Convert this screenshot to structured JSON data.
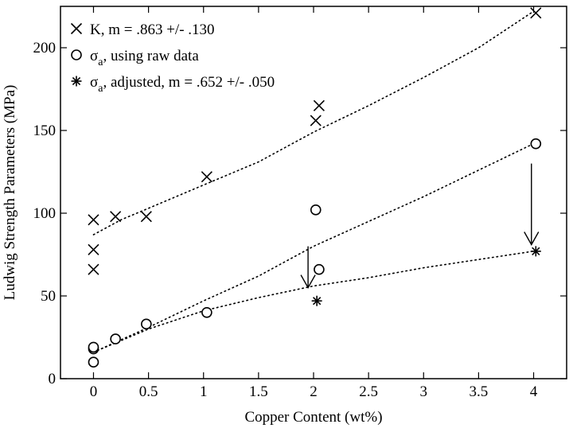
{
  "chart_data": {
    "type": "scatter",
    "title": "",
    "xlabel": "Copper Content (wt%)",
    "ylabel": "Ludwig Strength Parameters (MPa)",
    "xlim": [
      -0.3,
      4.3
    ],
    "ylim": [
      0,
      225
    ],
    "x_ticks": [
      {
        "value": 0,
        "label": "0"
      },
      {
        "value": 0.5,
        "label": "0.5"
      },
      {
        "value": 1,
        "label": "1"
      },
      {
        "value": 1.5,
        "label": "1.5"
      },
      {
        "value": 2,
        "label": "2"
      },
      {
        "value": 2.5,
        "label": "2.5"
      },
      {
        "value": 3,
        "label": "3"
      },
      {
        "value": 3.5,
        "label": "3.5"
      },
      {
        "value": 4,
        "label": "4"
      }
    ],
    "y_ticks": [
      {
        "value": 0,
        "label": "0"
      },
      {
        "value": 50,
        "label": "50"
      },
      {
        "value": 100,
        "label": "100"
      },
      {
        "value": 150,
        "label": "150"
      },
      {
        "value": 200,
        "label": "200"
      }
    ],
    "grid": false,
    "legend_position": "top-left",
    "series": [
      {
        "name": "K, m = .863 +/- .130",
        "label_parts": [
          "K, m = .863 +/- .130"
        ],
        "marker": "x",
        "points": [
          [
            0,
            66
          ],
          [
            0,
            78
          ],
          [
            0,
            96
          ],
          [
            0.2,
            98
          ],
          [
            0.48,
            98
          ],
          [
            1.03,
            122
          ],
          [
            2.02,
            156
          ],
          [
            2.05,
            165
          ],
          [
            4.02,
            221
          ]
        ],
        "trend": [
          [
            0,
            87
          ],
          [
            0.25,
            96
          ],
          [
            0.5,
            103
          ],
          [
            1,
            117
          ],
          [
            1.5,
            131
          ],
          [
            2,
            149
          ],
          [
            2.5,
            165
          ],
          [
            3,
            182
          ],
          [
            3.5,
            200
          ],
          [
            4,
            222
          ]
        ]
      },
      {
        "name": "σa, using raw data",
        "label_parts": [
          "σ",
          "a",
          ", using raw data"
        ],
        "marker": "circle",
        "points": [
          [
            0,
            10
          ],
          [
            0,
            18
          ],
          [
            0,
            19
          ],
          [
            0.2,
            24
          ],
          [
            0.48,
            33
          ],
          [
            1.03,
            40
          ],
          [
            2.02,
            102
          ],
          [
            2.05,
            66
          ],
          [
            4.02,
            142
          ]
        ],
        "trend": [
          [
            0,
            16
          ],
          [
            0.5,
            31
          ],
          [
            1,
            47
          ],
          [
            1.5,
            62
          ],
          [
            2,
            80
          ],
          [
            2.5,
            95
          ],
          [
            3,
            110
          ],
          [
            3.5,
            126
          ],
          [
            4,
            142
          ]
        ]
      },
      {
        "name": "σa, adjusted, m = .652 +/- .050",
        "label_parts": [
          "σ",
          "a",
          ", adjusted, m = .652 +/- .050"
        ],
        "marker": "asterisk",
        "points": [
          [
            2.03,
            47
          ],
          [
            4.02,
            77
          ]
        ],
        "trend": [
          [
            0,
            16
          ],
          [
            0.5,
            30
          ],
          [
            1,
            41
          ],
          [
            1.5,
            49
          ],
          [
            2,
            56
          ],
          [
            2.5,
            61
          ],
          [
            3,
            67
          ],
          [
            3.5,
            72
          ],
          [
            4,
            77
          ]
        ]
      }
    ],
    "annotations": [
      {
        "type": "arrow",
        "from": [
          1.95,
          80
        ],
        "to": [
          1.95,
          55
        ]
      },
      {
        "type": "arrow",
        "from": [
          3.98,
          130
        ],
        "to": [
          3.98,
          81
        ]
      }
    ]
  }
}
